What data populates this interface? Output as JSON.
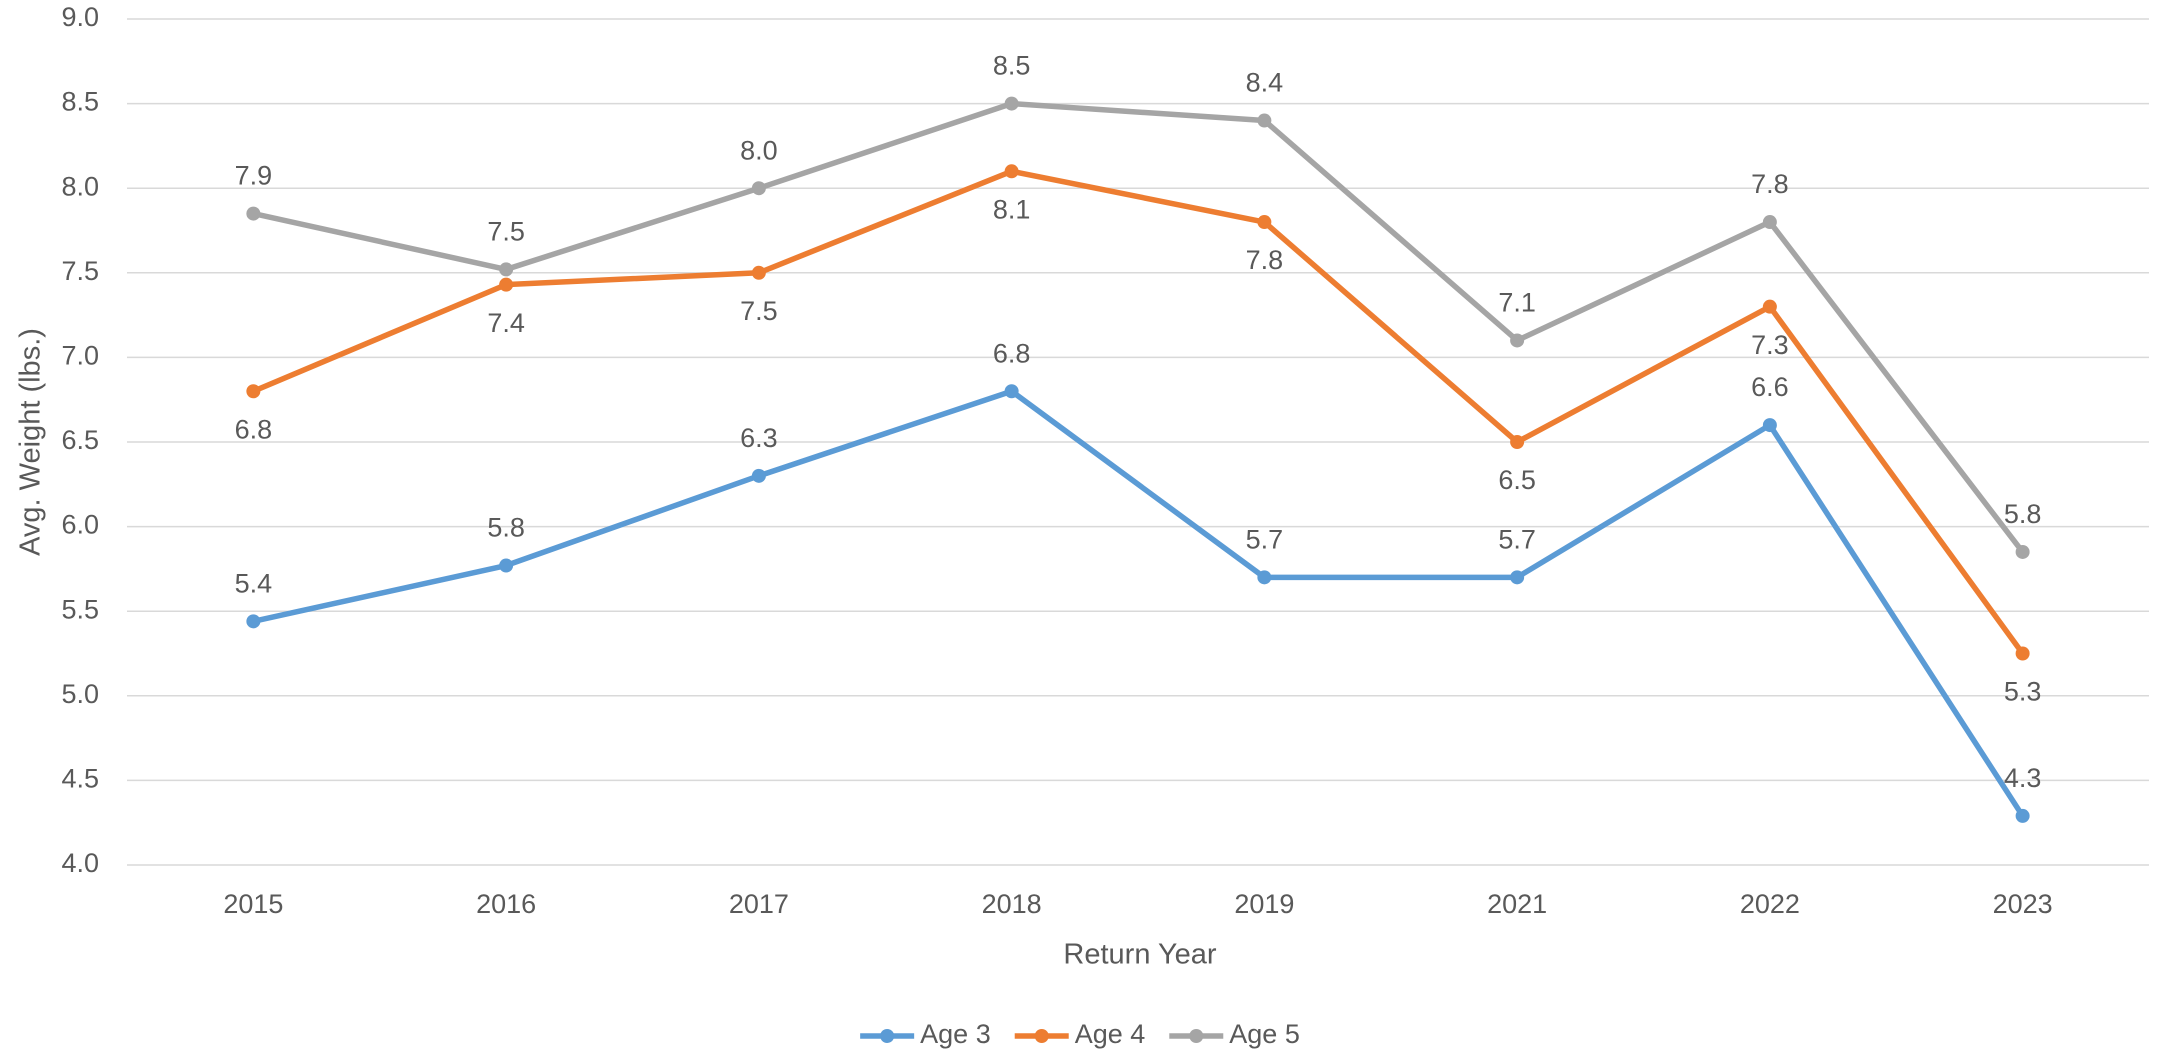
{
  "chart_data": {
    "type": "line",
    "x_label": "Return Year",
    "y_label": "Avg. Weight (lbs.)",
    "categories": [
      "2015",
      "2016",
      "2017",
      "2018",
      "2019",
      "2021",
      "2022",
      "2023"
    ],
    "series": [
      {
        "name": "Age 3",
        "color": "#5b9bd5",
        "values": [
          5.44,
          5.77,
          6.3,
          6.8,
          5.7,
          5.7,
          6.6,
          4.29
        ],
        "value_labels": [
          "5.4",
          "5.8",
          "6.3",
          "6.8",
          "5.7",
          "5.7",
          "6.6",
          "4.3"
        ]
      },
      {
        "name": "Age 4",
        "color": "#ed7d31",
        "values": [
          6.8,
          7.43,
          7.5,
          8.1,
          7.8,
          6.5,
          7.3,
          5.25
        ],
        "value_labels": [
          "6.8",
          "7.4",
          "7.5",
          "8.1",
          "7.8",
          "6.5",
          "7.3",
          "5.3"
        ]
      },
      {
        "name": "Age 5",
        "color": "#a5a5a5",
        "values": [
          7.85,
          7.52,
          8.0,
          8.5,
          8.4,
          7.1,
          7.8,
          5.85
        ],
        "value_labels": [
          "7.9",
          "7.5",
          "8.0",
          "8.5",
          "8.4",
          "7.1",
          "7.8",
          "5.8"
        ]
      }
    ],
    "ylim": [
      4,
      9
    ],
    "yticks": [
      {
        "value": 4,
        "label": "4.0"
      },
      4.5,
      {
        "value": 5,
        "label": "5.0"
      },
      5.5,
      {
        "value": 6,
        "label": "6.0"
      },
      6.5,
      {
        "value": 7,
        "label": "7.0"
      },
      7.5,
      {
        "value": 8,
        "label": "8.0"
      },
      8.5,
      {
        "value": 9,
        "label": "9.0"
      }
    ],
    "grid": true,
    "legend": "bottom"
  }
}
